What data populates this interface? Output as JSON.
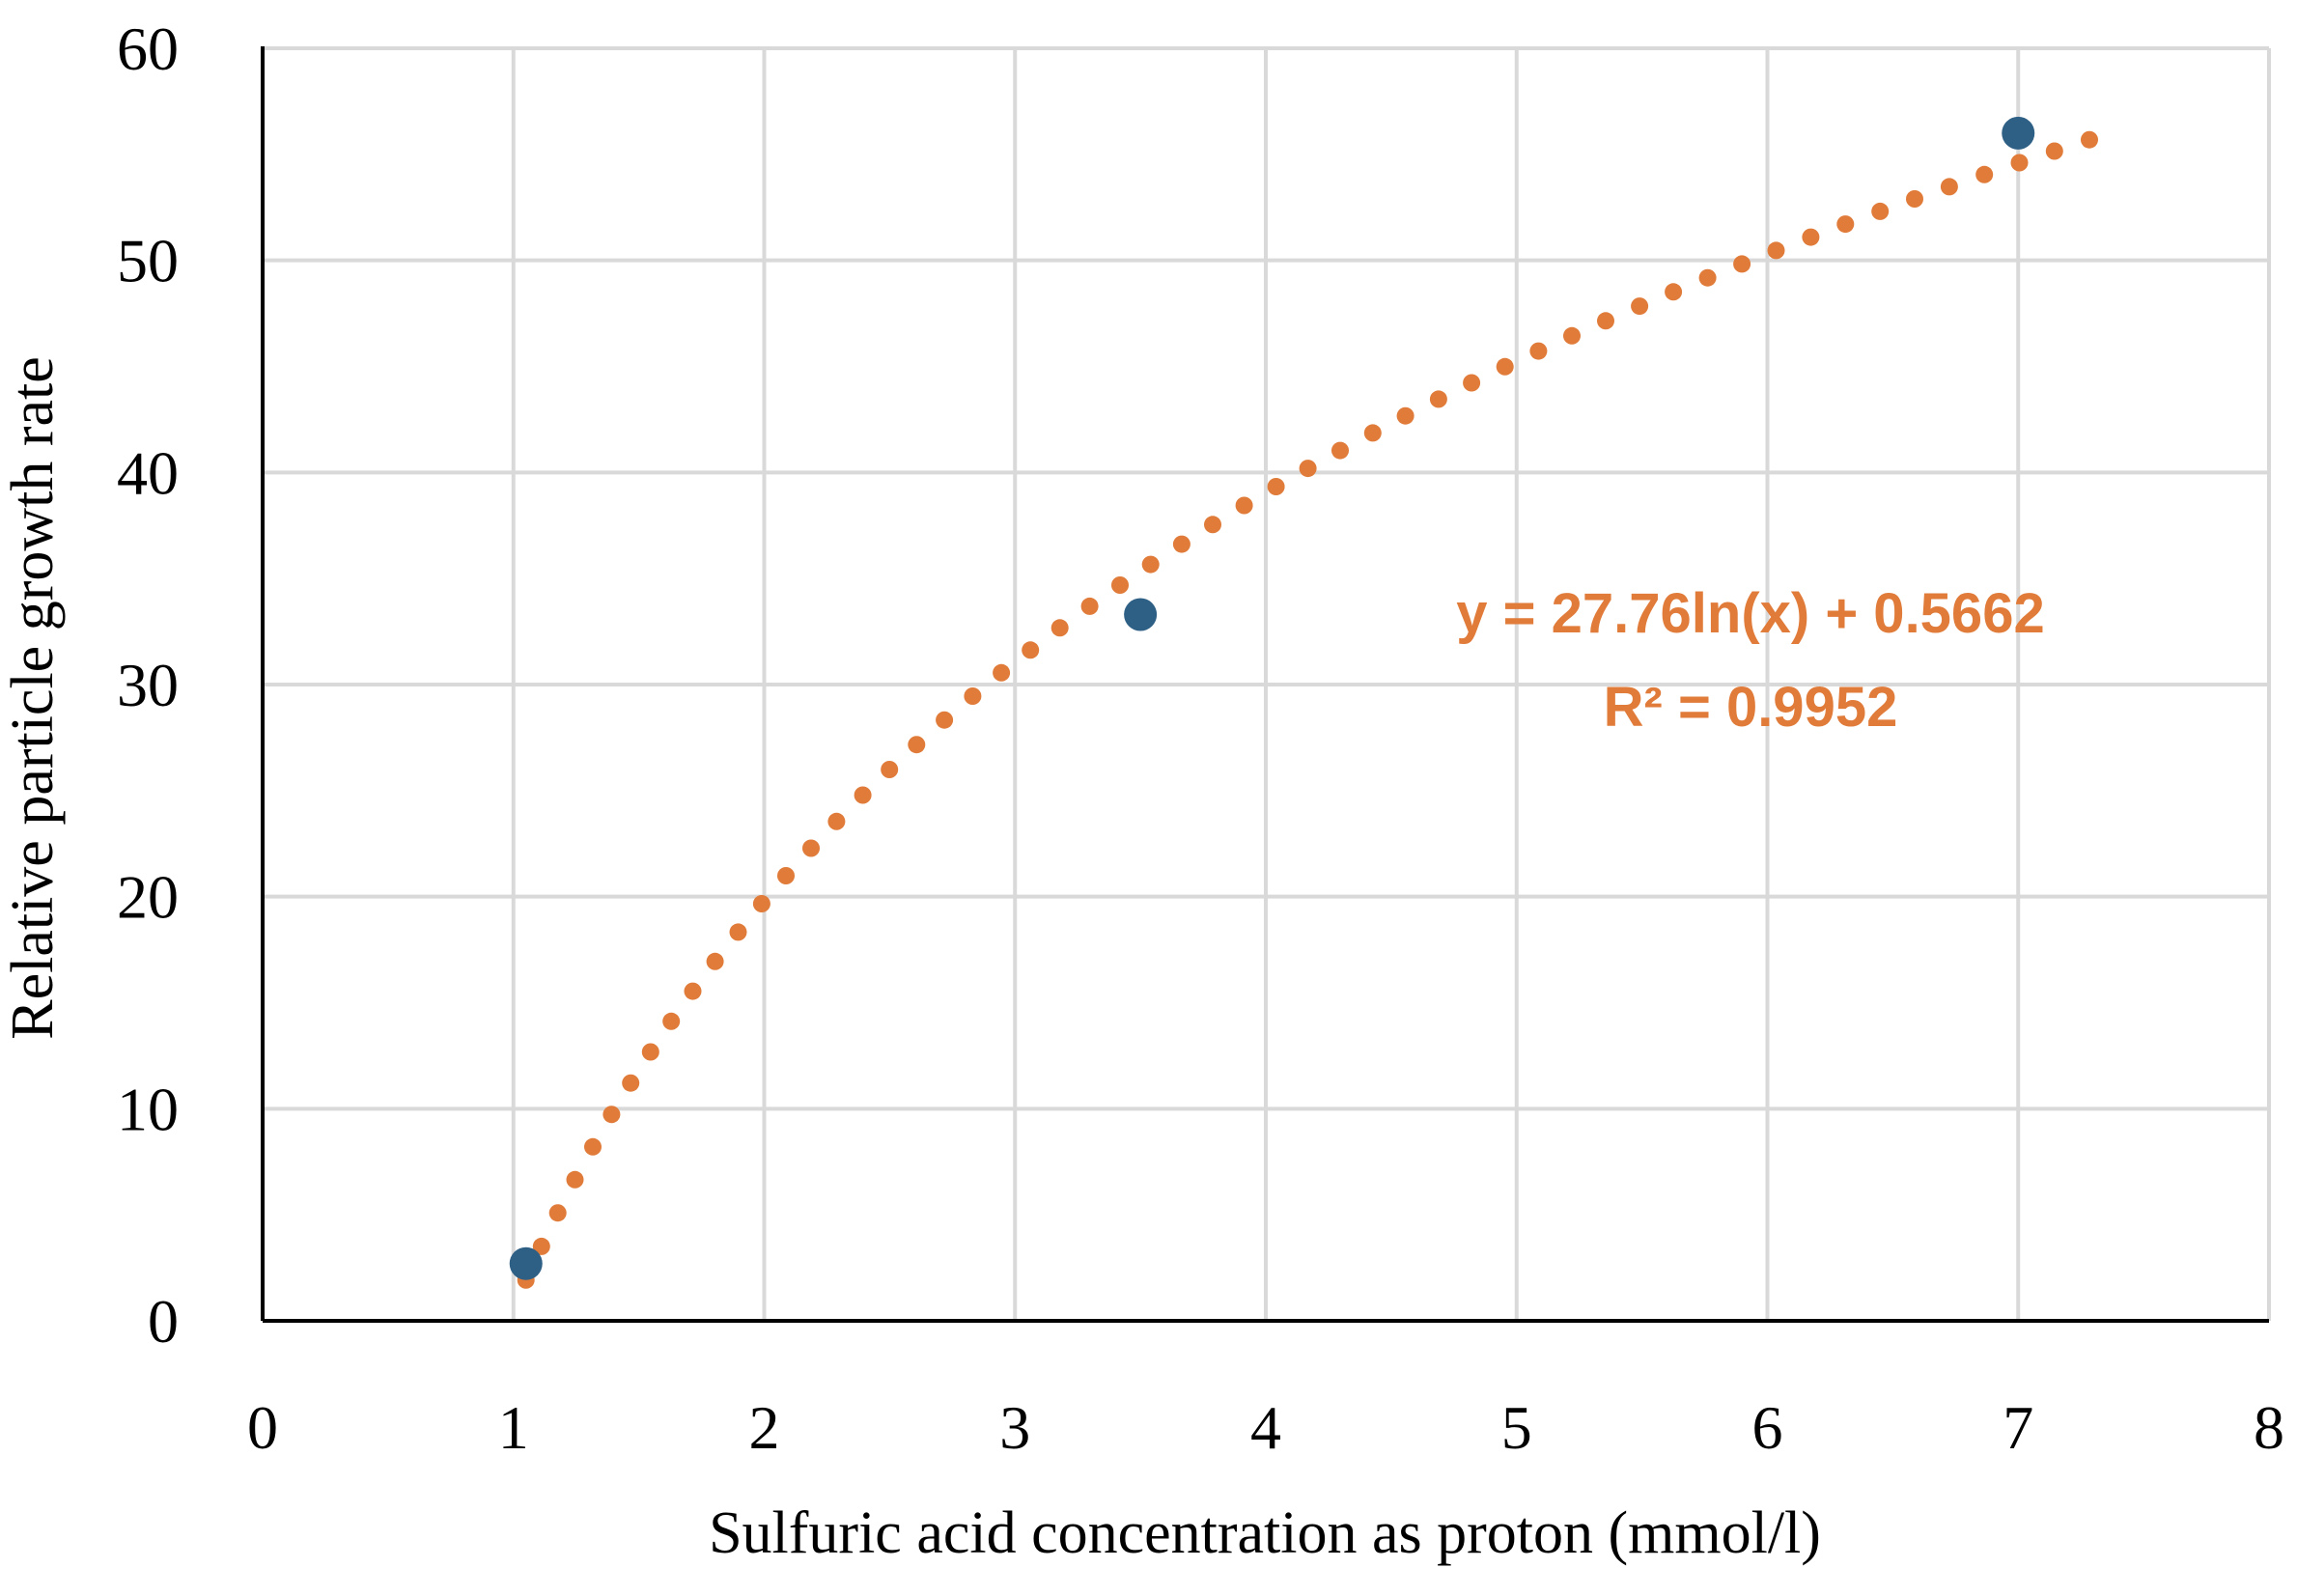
{
  "chart_data": {
    "type": "scatter",
    "xlabel": "Sulfuric acid concentration as proton (mmol/l)",
    "ylabel": "Relative particle growth rate",
    "xlim": [
      0,
      8
    ],
    "ylim": [
      0,
      60
    ],
    "x_ticks": [
      "0",
      "1",
      "2",
      "3",
      "4",
      "5",
      "6",
      "7",
      "8"
    ],
    "y_ticks": [
      "0",
      "10",
      "20",
      "30",
      "40",
      "50",
      "60"
    ],
    "grid": true,
    "legend": "none",
    "series": [
      {
        "points": [
          {
            "x": 1.05,
            "y": 2.7
          },
          {
            "x": 3.5,
            "y": 33.3
          },
          {
            "x": 7.0,
            "y": 56.0
          }
        ],
        "color": "#2E5F85",
        "marker": "circle"
      }
    ],
    "trendline": {
      "type": "logarithmic",
      "a": 27.76,
      "b": 0.5662,
      "x_range": [
        1.05,
        7.4
      ],
      "style": "dotted",
      "color": "#E07B39",
      "equation": "y = 27.76ln(x) + 0.5662",
      "r_squared": "R² = 0.9952"
    }
  }
}
